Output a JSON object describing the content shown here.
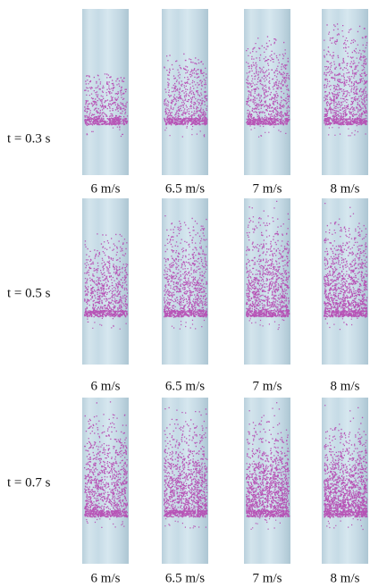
{
  "rows": [
    {
      "label": "t = 0.3 s",
      "columns": [
        "6 m/s",
        "6.5 m/s",
        "7 m/s",
        "8 m/s"
      ]
    },
    {
      "label": "t = 0.5 s",
      "columns": [
        "6 m/s",
        "6.5 m/s",
        "7 m/s",
        "8 m/s"
      ]
    },
    {
      "label": "t = 0.7 s",
      "columns": [
        "6 m/s",
        "6.5 m/s",
        "7 m/s",
        "8 m/s"
      ]
    }
  ]
}
